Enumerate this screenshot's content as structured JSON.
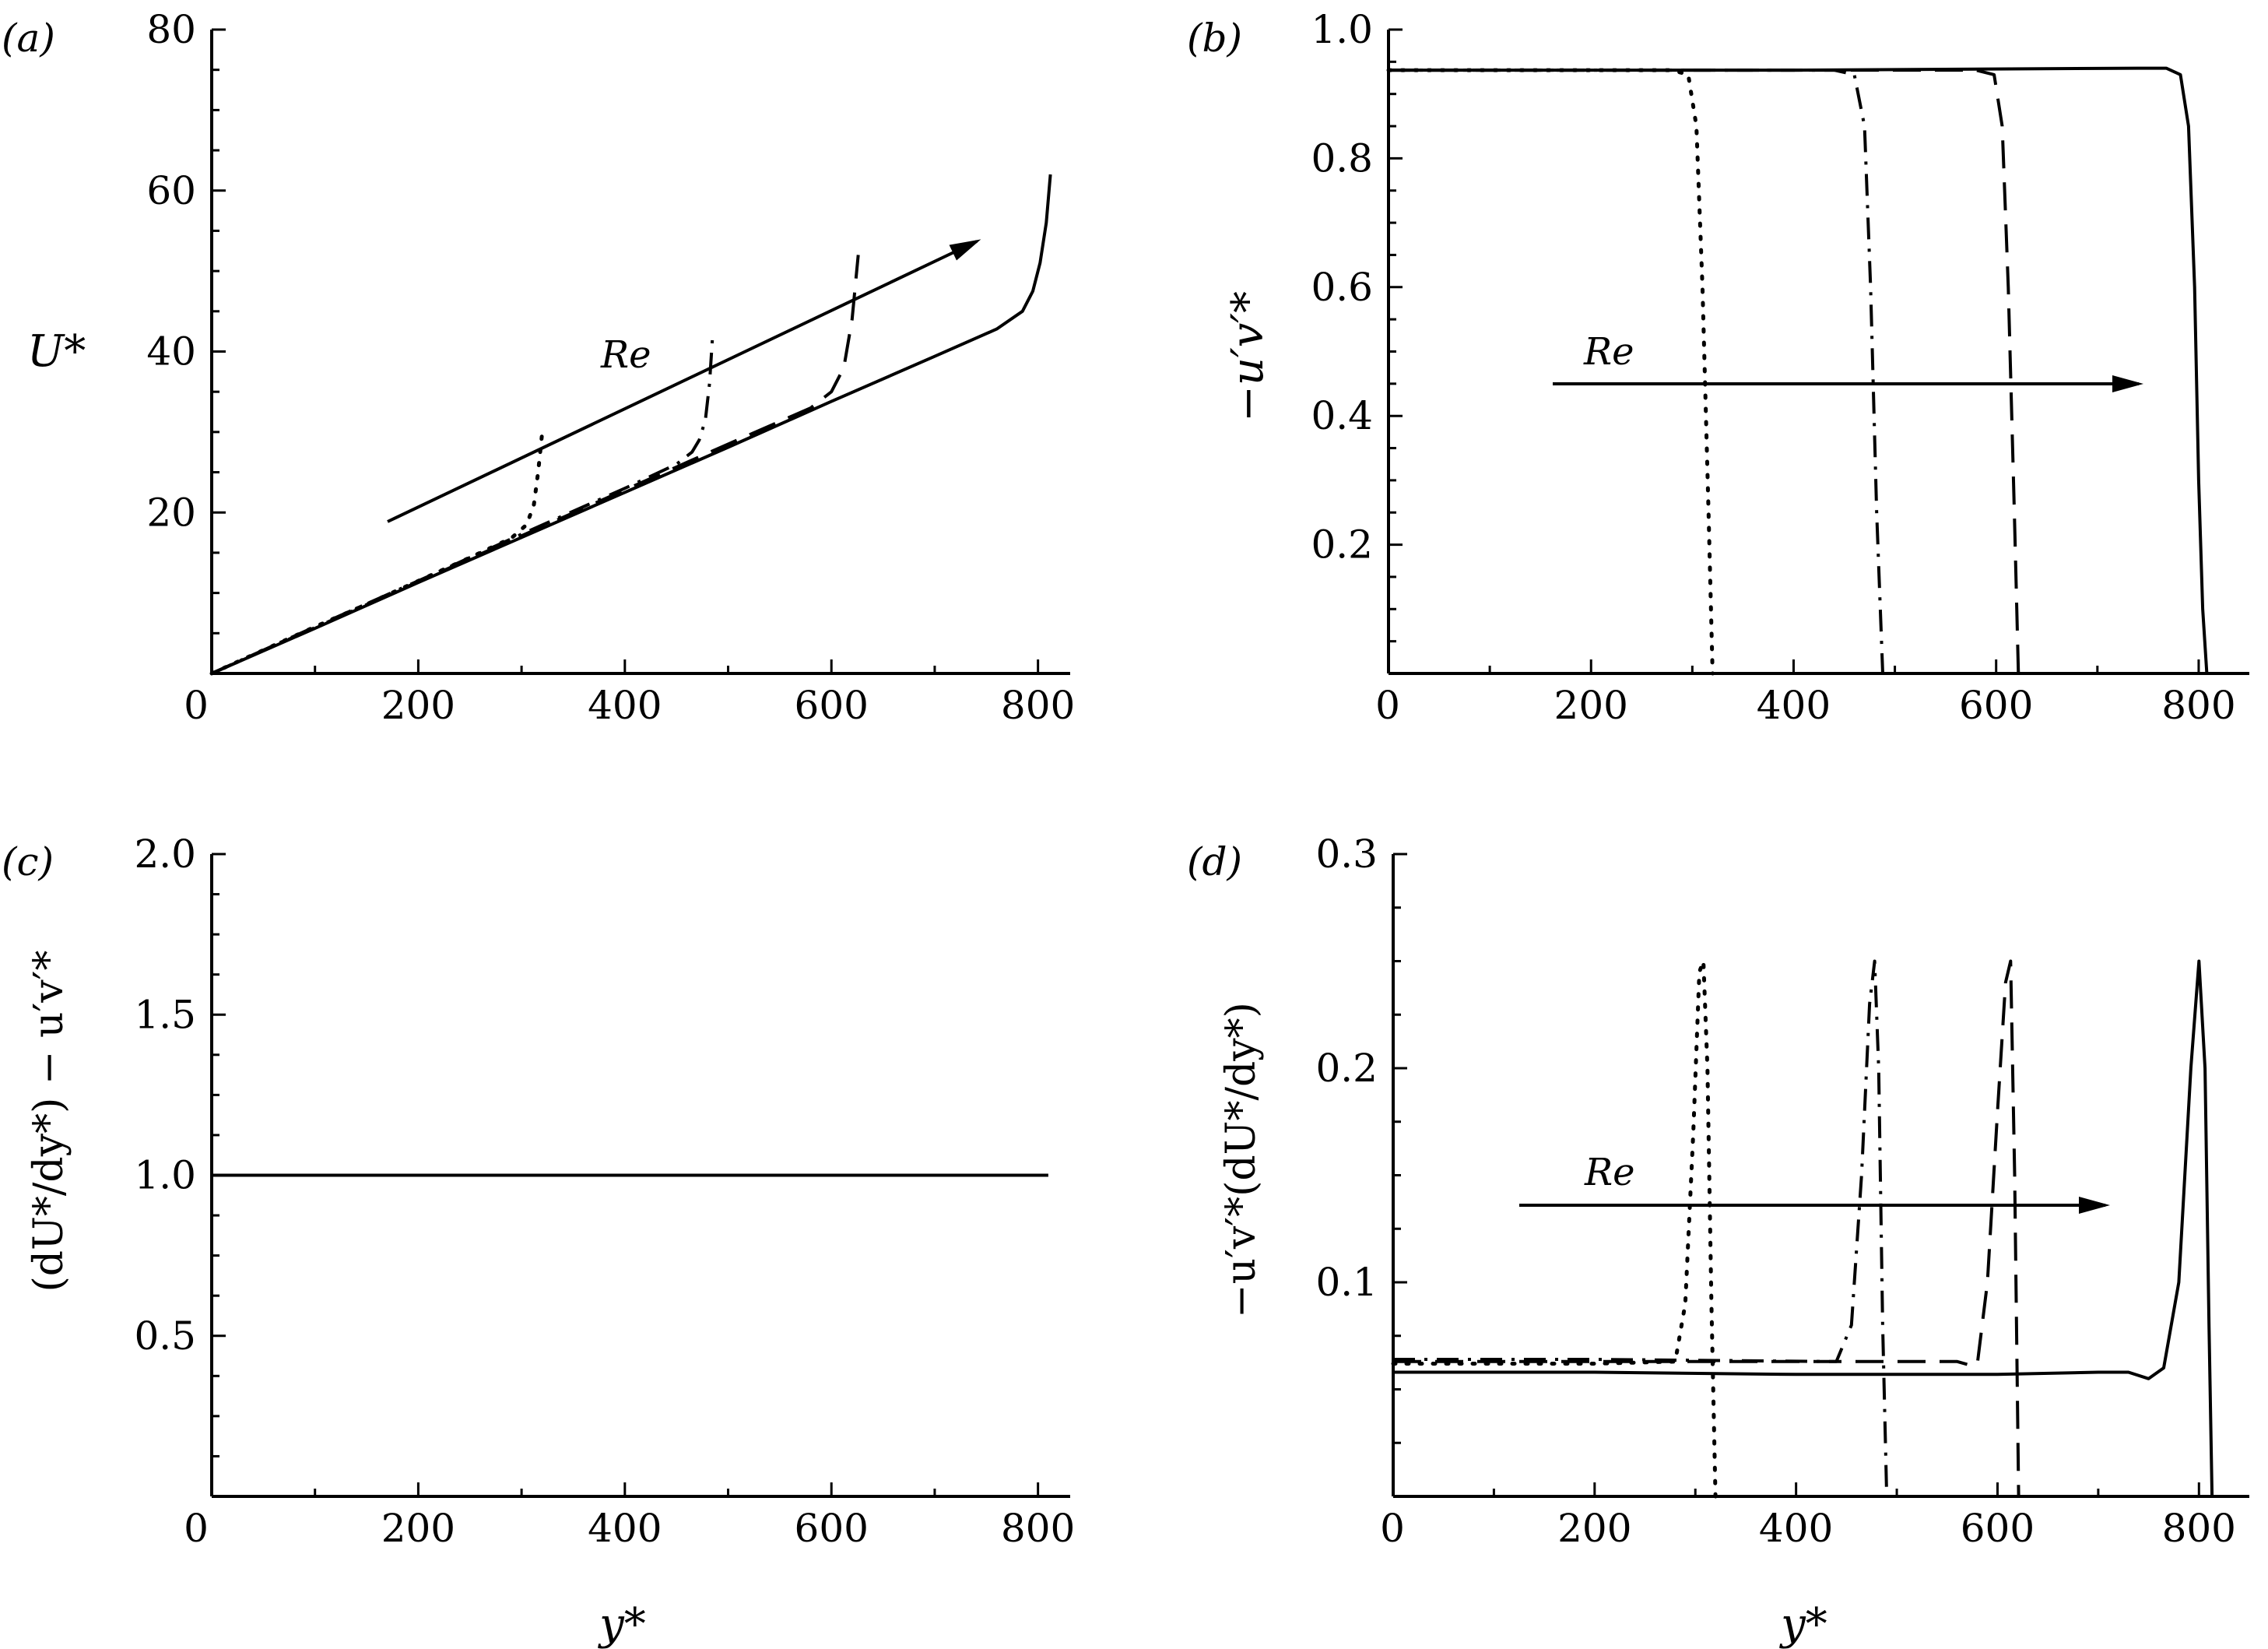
{
  "figure": {
    "panels": [
      {
        "id": "a",
        "panel_label": "(a)",
        "ylabel": "U*",
        "xlabel": "",
        "annotation": "Re",
        "x_ticks": [
          "0",
          "200",
          "400",
          "600",
          "800"
        ],
        "y_ticks": [
          "20",
          "40",
          "60",
          "80"
        ]
      },
      {
        "id": "b",
        "panel_label": "(b)",
        "ylabel": "−u′v′*",
        "xlabel": "",
        "annotation": "Re",
        "x_ticks": [
          "0",
          "200",
          "400",
          "600",
          "800"
        ],
        "y_ticks": [
          "0.2",
          "0.4",
          "0.6",
          "0.8",
          "1.0"
        ]
      },
      {
        "id": "c",
        "panel_label": "(c)",
        "ylabel": "(dU*/dy*) − u′v′*",
        "xlabel": "y*",
        "annotation": "",
        "x_ticks": [
          "0",
          "200",
          "400",
          "600",
          "800"
        ],
        "y_ticks": [
          "0.5",
          "1.0",
          "1.5",
          "2.0"
        ]
      },
      {
        "id": "d",
        "panel_label": "(d)",
        "ylabel": "−u′v′*(dU*/dy*)",
        "xlabel": "y*",
        "annotation": "Re",
        "x_ticks": [
          "0",
          "200",
          "400",
          "600",
          "800"
        ],
        "y_ticks": [
          "0.1",
          "0.2",
          "0.3"
        ]
      }
    ]
  },
  "colors": {
    "line": "#000000",
    "background": "#ffffff"
  },
  "chart_data": [
    {
      "panel": "a",
      "type": "line",
      "xlim": [
        0,
        850
      ],
      "ylim": [
        0,
        80
      ],
      "grid": false,
      "series": [
        {
          "style": "dotted",
          "x": [
            0,
            50,
            100,
            150,
            200,
            250,
            290,
            305,
            312,
            316,
            320
          ],
          "y": [
            0,
            2.9,
            5.8,
            8.6,
            11.5,
            14.4,
            16.8,
            18.5,
            21,
            25,
            30
          ]
        },
        {
          "style": "dashdot",
          "x": [
            0,
            100,
            200,
            300,
            400,
            450,
            465,
            472,
            478,
            482,
            485
          ],
          "y": [
            0,
            5.8,
            11.5,
            17.3,
            23,
            26,
            27.5,
            29,
            31.5,
            36,
            42
          ]
        },
        {
          "style": "dashed",
          "x": [
            0,
            100,
            200,
            300,
            400,
            500,
            580,
            600,
            612,
            620,
            626
          ],
          "y": [
            0,
            5.7,
            11.4,
            17.1,
            22.8,
            28.5,
            33,
            35,
            38,
            44,
            52
          ]
        },
        {
          "style": "solid",
          "x": [
            0,
            100,
            200,
            300,
            400,
            500,
            600,
            700,
            760,
            785,
            795,
            802,
            808,
            812
          ],
          "y": [
            0,
            5.6,
            11.3,
            16.9,
            22.5,
            28.1,
            33.8,
            39.4,
            42.8,
            45,
            47.5,
            51,
            56,
            62
          ]
        }
      ]
    },
    {
      "panel": "b",
      "type": "line",
      "xlim": [
        0,
        850
      ],
      "ylim": [
        0,
        1.0
      ],
      "grid": false,
      "series": [
        {
          "style": "dotted",
          "x": [
            0,
            200,
            280,
            296,
            304,
            310,
            316,
            320
          ],
          "y": [
            0.937,
            0.937,
            0.937,
            0.93,
            0.85,
            0.6,
            0.25,
            0
          ]
        },
        {
          "style": "dashdot",
          "x": [
            0,
            300,
            440,
            460,
            470,
            476,
            482,
            488
          ],
          "y": [
            0.937,
            0.937,
            0.937,
            0.93,
            0.85,
            0.6,
            0.25,
            0
          ]
        },
        {
          "style": "dashed",
          "x": [
            0,
            300,
            580,
            598,
            606,
            612,
            618,
            622
          ],
          "y": [
            0.937,
            0.937,
            0.937,
            0.93,
            0.85,
            0.6,
            0.25,
            0
          ]
        },
        {
          "style": "solid",
          "x": [
            0,
            400,
            740,
            768,
            782,
            790,
            796,
            800,
            804,
            808
          ],
          "y": [
            0.937,
            0.937,
            0.94,
            0.94,
            0.93,
            0.85,
            0.6,
            0.3,
            0.1,
            0
          ]
        }
      ]
    },
    {
      "panel": "c",
      "type": "line",
      "xlim": [
        0,
        850
      ],
      "ylim": [
        0,
        2.0
      ],
      "grid": false,
      "series": [
        {
          "style": "solid",
          "x": [
            0,
            810
          ],
          "y": [
            1.0,
            1.0
          ]
        }
      ]
    },
    {
      "panel": "d",
      "type": "line",
      "xlim": [
        0,
        850
      ],
      "ylim": [
        0,
        0.3
      ],
      "grid": false,
      "series": [
        {
          "style": "dotted",
          "x": [
            0,
            200,
            280,
            290,
            298,
            304,
            308,
            312,
            316,
            320
          ],
          "y": [
            0.062,
            0.062,
            0.063,
            0.09,
            0.17,
            0.245,
            0.25,
            0.2,
            0.09,
            0
          ]
        },
        {
          "style": "dashdot",
          "x": [
            0,
            200,
            440,
            455,
            465,
            473,
            478,
            482,
            486,
            490
          ],
          "y": [
            0.064,
            0.064,
            0.063,
            0.08,
            0.15,
            0.23,
            0.25,
            0.2,
            0.08,
            0
          ]
        },
        {
          "style": "dashed",
          "x": [
            0,
            300,
            560,
            575,
            580,
            590,
            600,
            608,
            613,
            617,
            621
          ],
          "y": [
            0.063,
            0.063,
            0.063,
            0.061,
            0.062,
            0.1,
            0.18,
            0.24,
            0.25,
            0.15,
            0
          ]
        },
        {
          "style": "solid",
          "x": [
            0,
            200,
            400,
            600,
            700,
            730,
            750,
            765,
            780,
            792,
            800,
            806,
            810,
            813
          ],
          "y": [
            0.058,
            0.058,
            0.057,
            0.057,
            0.058,
            0.058,
            0.055,
            0.06,
            0.1,
            0.2,
            0.25,
            0.2,
            0.08,
            0
          ]
        }
      ]
    }
  ]
}
